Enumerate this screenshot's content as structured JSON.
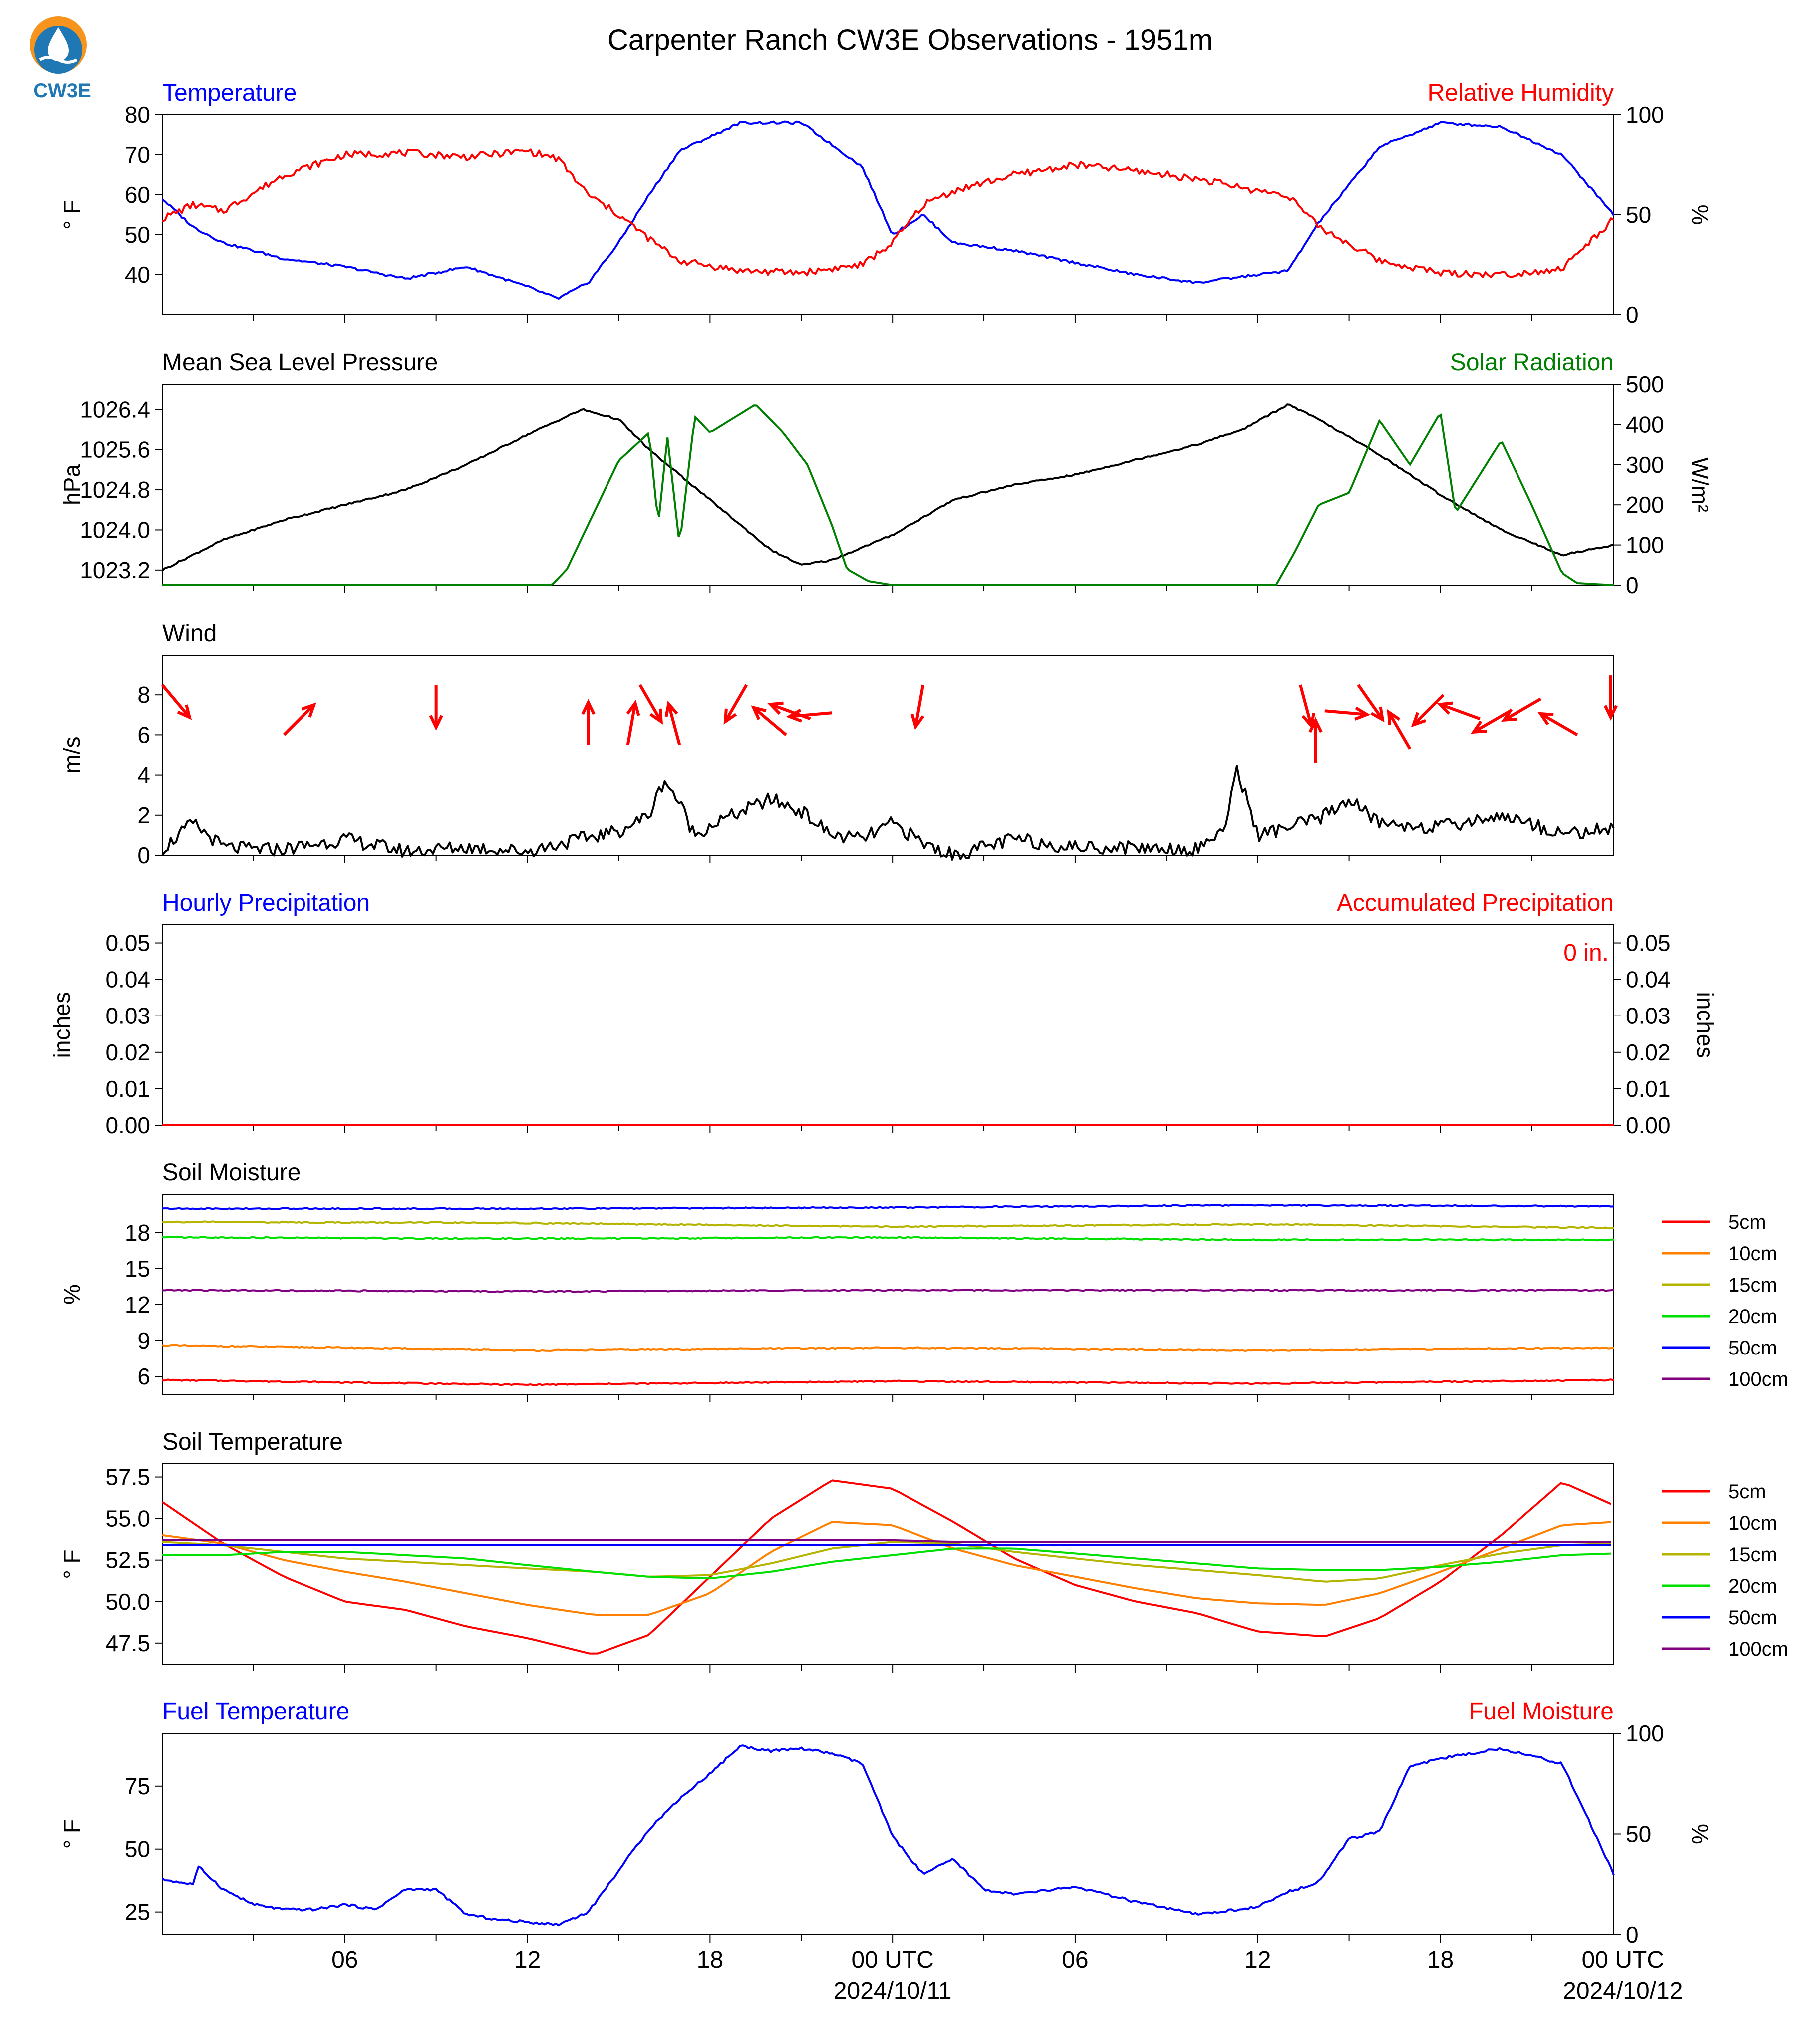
{
  "title": "Carpenter Ranch CW3E Observations - 1951m",
  "logo_text": "CW3E",
  "x_axis": {
    "tick_labels": [
      "06",
      "12",
      "18",
      "00 UTC",
      "06",
      "12",
      "18",
      "00 UTC"
    ],
    "date_labels": [
      "2024/10/11",
      "2024/10/12"
    ]
  },
  "colors": {
    "blue": "#0000ff",
    "red": "#ff0000",
    "green": "#008000",
    "black": "#000000",
    "orange": "#ff8000",
    "olive": "#b5b500",
    "lime": "#00e000",
    "purple": "#800080",
    "logo_orange": "#f7941d",
    "logo_blue": "#1f78b4"
  },
  "chart_data": [
    {
      "type": "line",
      "left_title": "Temperature",
      "right_title": "Relative Humidity",
      "ylabel": "° F",
      "ylabel_right": "%",
      "yticks": [
        "80",
        "70",
        "60",
        "50",
        "40"
      ],
      "yticks_right": [
        "100",
        "50",
        "0"
      ],
      "ylim": [
        30,
        80
      ],
      "ylim_right": [
        0,
        100
      ],
      "x_hours": [
        0,
        1,
        2,
        4,
        6,
        8,
        10,
        12,
        13,
        14,
        15,
        16,
        17,
        19,
        21,
        23,
        24,
        25,
        26,
        28,
        30,
        32,
        34,
        36,
        37,
        38,
        40,
        42,
        44,
        46,
        47.7
      ],
      "series": [
        {
          "color": "blue",
          "axis": "left",
          "values": [
            59,
            52,
            48,
            44,
            42,
            39,
            42,
            37,
            34,
            38,
            48,
            60,
            71,
            78,
            78,
            67,
            50,
            55,
            48,
            46,
            43,
            40,
            38,
            40,
            41,
            53,
            72,
            78,
            77,
            70,
            55
          ]
        },
        {
          "color": "red",
          "axis": "right",
          "values": [
            48,
            55,
            52,
            70,
            80,
            81,
            79,
            82,
            78,
            60,
            50,
            38,
            27,
            22,
            21,
            25,
            36,
            55,
            62,
            70,
            75,
            72,
            68,
            62,
            60,
            44,
            27,
            21,
            20,
            23,
            48
          ]
        }
      ]
    },
    {
      "type": "line",
      "left_title": "Mean Sea Level Pressure",
      "right_title": "Solar Radiation",
      "ylabel": "hPa",
      "ylabel_right": "W/m²",
      "yticks": [
        "1026.4",
        "1025.6",
        "1024.8",
        "1024.0",
        "1023.2"
      ],
      "yticks_right": [
        "500",
        "400",
        "300",
        "200",
        "100",
        "0"
      ],
      "ylim": [
        1022.9,
        1026.9
      ],
      "ylim_right": [
        0,
        500
      ],
      "x_hours": [
        0,
        2,
        4,
        6,
        8,
        10,
        12,
        13.8,
        15,
        16,
        18,
        20,
        21,
        22,
        24,
        26,
        28,
        30,
        32,
        34,
        35.5,
        37,
        38,
        40,
        42,
        44,
        46,
        47.7
      ],
      "series": [
        {
          "color": "black",
          "axis": "left",
          "values": [
            1023.2,
            1023.8,
            1024.2,
            1024.5,
            1024.8,
            1025.3,
            1025.9,
            1026.4,
            1026.2,
            1025.6,
            1024.6,
            1023.6,
            1023.3,
            1023.4,
            1023.9,
            1024.6,
            1024.9,
            1025.1,
            1025.4,
            1025.7,
            1026.0,
            1026.5,
            1026.2,
            1025.5,
            1024.7,
            1024.0,
            1023.5,
            1023.7
          ]
        }
      ],
      "solar_series": {
        "color": "green",
        "x_hours": [
          0,
          12.8,
          13.3,
          15,
          16,
          16.3,
          16.6,
          17,
          17.5,
          18,
          19.5,
          20.4,
          21.2,
          22,
          22.5,
          23.2,
          24,
          36.6,
          37.2,
          38,
          39,
          40,
          41,
          42,
          42.5,
          44,
          45,
          46,
          46.5,
          47.7
        ],
        "values": [
          0,
          0,
          40,
          310,
          380,
          150,
          370,
          100,
          420,
          380,
          450,
          380,
          300,
          150,
          40,
          10,
          0,
          0,
          80,
          200,
          230,
          410,
          300,
          430,
          180,
          360,
          200,
          30,
          5,
          0
        ]
      }
    },
    {
      "type": "line",
      "left_title": "Wind",
      "ylabel": "m/s",
      "yticks": [
        "8",
        "6",
        "4",
        "2",
        "0"
      ],
      "ylim": [
        0,
        10
      ],
      "x_hours": [
        0,
        1,
        2,
        3,
        4,
        6,
        8,
        10,
        12,
        14,
        15,
        16,
        16.5,
        17,
        17.5,
        18,
        20,
        21,
        22,
        23,
        24,
        25,
        26,
        28,
        30,
        32,
        34,
        35,
        35.3,
        36,
        38,
        39,
        40,
        42,
        44,
        46,
        47.7
      ],
      "series": [
        {
          "color": "black",
          "axis": "left",
          "values": [
            0.3,
            1.6,
            0.4,
            0.3,
            0.3,
            0.8,
            0.2,
            0.4,
            0.2,
            0.9,
            1.2,
            2.0,
            3.8,
            2.6,
            1.0,
            1.5,
            2.8,
            2.2,
            1.0,
            0.8,
            1.6,
            0.6,
            0.0,
            0.8,
            0.4,
            0.4,
            0.3,
            1.5,
            4.5,
            1.0,
            1.8,
            2.8,
            1.6,
            1.4,
            2.0,
            1.1,
            1.3
          ]
        }
      ],
      "barbs_color": "red",
      "barbs": [
        {
          "hour": 0,
          "speed": 8.5,
          "dir_deg": 140
        },
        {
          "hour": 4,
          "speed": 6.0,
          "dir_deg": 45
        },
        {
          "hour": 9,
          "speed": 8.5,
          "dir_deg": 180
        },
        {
          "hour": 14,
          "speed": 5.5,
          "dir_deg": 0
        },
        {
          "hour": 15.3,
          "speed": 5.5,
          "dir_deg": 10
        },
        {
          "hour": 15.7,
          "speed": 8.5,
          "dir_deg": 150
        },
        {
          "hour": 17,
          "speed": 5.5,
          "dir_deg": 345
        },
        {
          "hour": 19.2,
          "speed": 8.5,
          "dir_deg": 210
        },
        {
          "hour": 20.5,
          "speed": 6.0,
          "dir_deg": 310
        },
        {
          "hour": 21.3,
          "speed": 6.8,
          "dir_deg": 290
        },
        {
          "hour": 22,
          "speed": 7.1,
          "dir_deg": 265
        },
        {
          "hour": 25,
          "speed": 8.5,
          "dir_deg": 190
        },
        {
          "hour": 37.9,
          "speed": 4.6,
          "dir_deg": 0
        },
        {
          "hour": 37.4,
          "speed": 8.5,
          "dir_deg": 165
        },
        {
          "hour": 38.2,
          "speed": 7.2,
          "dir_deg": 95
        },
        {
          "hour": 39.3,
          "speed": 8.5,
          "dir_deg": 145
        },
        {
          "hour": 41,
          "speed": 5.3,
          "dir_deg": 330
        },
        {
          "hour": 42.1,
          "speed": 8.0,
          "dir_deg": 225
        },
        {
          "hour": 43.3,
          "speed": 6.8,
          "dir_deg": 290
        },
        {
          "hour": 44.3,
          "speed": 7.2,
          "dir_deg": 240
        },
        {
          "hour": 45.3,
          "speed": 7.8,
          "dir_deg": 240
        },
        {
          "hour": 46.5,
          "speed": 6.0,
          "dir_deg": 300
        },
        {
          "hour": 47.6,
          "speed": 9.0,
          "dir_deg": 180
        }
      ]
    },
    {
      "type": "line",
      "left_title": "Hourly Precipitation",
      "right_title": "Accumulated Precipitation",
      "ylabel": "inches",
      "ylabel_right": "inches",
      "yticks": [
        "0.05",
        "0.04",
        "0.03",
        "0.02",
        "0.01",
        "0.00"
      ],
      "yticks_right": [
        "0.05",
        "0.04",
        "0.03",
        "0.02",
        "0.01",
        "0.00"
      ],
      "ylim": [
        0,
        0.055
      ],
      "annotation": "0 in.",
      "x_hours": [
        0,
        47.7
      ],
      "series": [
        {
          "color": "blue",
          "axis": "left",
          "values": [
            0,
            0
          ]
        },
        {
          "color": "red",
          "axis": "right",
          "values": [
            0,
            0
          ]
        }
      ]
    },
    {
      "type": "line",
      "left_title": "Soil Moisture",
      "ylabel": "%",
      "yticks": [
        "18",
        "15",
        "12",
        "9",
        "6"
      ],
      "ylim": [
        4.5,
        21.2
      ],
      "x_hours": [
        0,
        12,
        24,
        36,
        47.7
      ],
      "legend": [
        "5cm",
        "10cm",
        "15cm",
        "20cm",
        "50cm",
        "100cm"
      ],
      "series": [
        {
          "name": "5cm",
          "color": "red",
          "values": [
            5.7,
            5.3,
            5.6,
            5.4,
            5.7
          ]
        },
        {
          "name": "10cm",
          "color": "orange",
          "values": [
            8.6,
            8.2,
            8.4,
            8.2,
            8.4
          ]
        },
        {
          "name": "15cm",
          "color": "olive",
          "values": [
            18.9,
            18.8,
            18.5,
            18.7,
            18.4
          ]
        },
        {
          "name": "20cm",
          "color": "lime",
          "values": [
            17.6,
            17.5,
            17.6,
            17.4,
            17.4
          ]
        },
        {
          "name": "50cm",
          "color": "blue",
          "values": [
            20.0,
            20.0,
            20.1,
            20.3,
            20.2
          ]
        },
        {
          "name": "100cm",
          "color": "purple",
          "values": [
            13.2,
            13.1,
            13.2,
            13.2,
            13.2
          ]
        }
      ]
    },
    {
      "type": "line",
      "left_title": "Soil Temperature",
      "ylabel": "° F",
      "yticks": [
        "57.5",
        "55.0",
        "52.5",
        "50.0",
        "47.5"
      ],
      "ylim": [
        46.2,
        58.3
      ],
      "x_hours": [
        0,
        2,
        4,
        6,
        8,
        10,
        12,
        14.2,
        16,
        18,
        20,
        22,
        24,
        26,
        28,
        30,
        32,
        34,
        36,
        38.2,
        40,
        42,
        44,
        46,
        47.7
      ],
      "legend": [
        "5cm",
        "10cm",
        "15cm",
        "20cm",
        "50cm",
        "100cm"
      ],
      "series": [
        {
          "name": "5cm",
          "color": "red",
          "values": [
            56.0,
            53.5,
            51.5,
            50.0,
            49.5,
            48.5,
            47.8,
            46.8,
            48.0,
            51.5,
            55.0,
            57.3,
            56.8,
            54.8,
            52.6,
            51.0,
            50.0,
            49.3,
            48.2,
            47.9,
            49.0,
            51.2,
            54.0,
            57.2,
            55.8
          ]
        },
        {
          "name": "10cm",
          "color": "orange",
          "values": [
            54.0,
            53.5,
            52.5,
            51.8,
            51.2,
            50.5,
            49.8,
            49.2,
            49.2,
            50.5,
            53.0,
            54.8,
            54.6,
            53.2,
            52.2,
            51.5,
            50.8,
            50.2,
            49.9,
            49.8,
            50.5,
            51.8,
            53.2,
            54.6,
            54.8
          ]
        },
        {
          "name": "15cm",
          "color": "olive",
          "values": [
            53.6,
            53.4,
            53.0,
            52.6,
            52.4,
            52.2,
            52.0,
            51.8,
            51.5,
            51.6,
            52.3,
            53.2,
            53.6,
            53.5,
            53.0,
            52.6,
            52.2,
            51.9,
            51.6,
            51.2,
            51.4,
            52.2,
            52.9,
            53.4,
            53.5
          ]
        },
        {
          "name": "20cm",
          "color": "lime",
          "values": [
            52.8,
            52.8,
            53.0,
            53.0,
            52.8,
            52.6,
            52.2,
            51.8,
            51.5,
            51.4,
            51.8,
            52.4,
            52.8,
            53.2,
            53.2,
            52.9,
            52.6,
            52.3,
            52.0,
            51.9,
            51.9,
            52.1,
            52.4,
            52.8,
            52.9
          ]
        },
        {
          "name": "50cm",
          "color": "blue",
          "values": [
            53.4,
            53.4,
            53.4,
            53.4,
            53.4,
            53.4,
            53.4,
            53.4,
            53.4,
            53.4,
            53.4,
            53.4,
            53.4,
            53.4,
            53.4,
            53.4,
            53.4,
            53.4,
            53.4,
            53.4,
            53.4,
            53.4,
            53.4,
            53.4,
            53.4
          ]
        },
        {
          "name": "100cm",
          "color": "purple",
          "values": [
            53.7,
            53.7,
            53.7,
            53.7,
            53.7,
            53.7,
            53.7,
            53.7,
            53.7,
            53.7,
            53.7,
            53.7,
            53.7,
            53.6,
            53.6,
            53.6,
            53.6,
            53.6,
            53.6,
            53.6,
            53.6,
            53.6,
            53.6,
            53.6,
            53.6
          ]
        }
      ]
    },
    {
      "type": "line",
      "left_title": "Fuel Temperature",
      "right_title": "Fuel Moisture",
      "ylabel": "° F",
      "ylabel_right": "%",
      "yticks": [
        "75",
        "50",
        "25"
      ],
      "yticks_right": [
        "100",
        "50",
        "0"
      ],
      "ylim": [
        16,
        96
      ],
      "ylim_right": [
        0,
        100
      ],
      "x_hours": [
        0,
        1,
        1.2,
        2,
        3,
        4,
        5,
        6,
        7,
        8,
        9,
        10,
        11,
        12,
        13,
        14,
        16,
        17,
        18,
        19,
        20,
        21,
        22,
        23,
        24,
        25,
        26,
        27,
        28,
        30,
        32,
        34,
        36,
        37,
        38,
        39,
        40,
        41,
        42,
        44,
        46,
        47.7
      ],
      "series": [
        {
          "color": "blue",
          "axis": "left",
          "values": [
            38,
            36,
            43,
            34,
            28,
            26,
            26,
            28,
            26,
            34,
            34,
            24,
            22,
            21,
            20,
            25,
            58,
            70,
            80,
            91,
            89,
            90,
            88,
            84,
            55,
            40,
            46,
            34,
            32,
            35,
            29,
            24,
            27,
            33,
            37,
            54,
            57,
            83,
            86,
            90,
            84,
            40
          ]
        }
      ]
    }
  ]
}
